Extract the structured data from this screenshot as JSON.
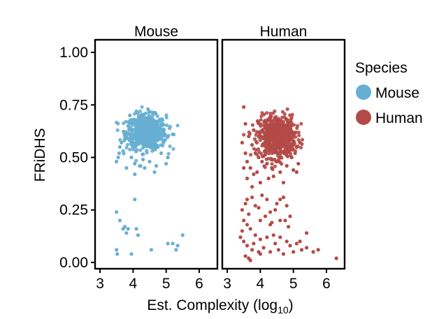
{
  "chart_data": {
    "type": "scatter",
    "facets": [
      {
        "name": "Mouse",
        "color": "#67aed3"
      },
      {
        "name": "Human",
        "color": "#b34a47"
      }
    ],
    "xlabel_main": "Est. Complexity (log",
    "xlabel_sub": "10",
    "xlabel_end": ")",
    "ylabel": "FRiDHS",
    "xlim": [
      2.85,
      6.55
    ],
    "ylim": [
      -0.03,
      1.06
    ],
    "x_ticks": [
      3,
      4,
      5,
      6
    ],
    "y_ticks": [
      0.0,
      0.25,
      0.5,
      0.75,
      1.0
    ],
    "y_tick_labels": [
      "0.00",
      "0.25",
      "0.50",
      "0.75",
      "1.00"
    ],
    "legend": {
      "title": "Species",
      "position": "right",
      "entries": [
        {
          "label": "Mouse",
          "color": "#67aed3"
        },
        {
          "label": "Human",
          "color": "#b34a47"
        }
      ]
    },
    "grid": false,
    "series": [
      {
        "name": "Mouse",
        "cluster": {
          "center": [
            4.4,
            0.62
          ],
          "spread": [
            0.3,
            0.04
          ],
          "n": 650
        },
        "points": [
          [
            3.5,
            0.48
          ],
          [
            3.55,
            0.5
          ],
          [
            3.6,
            0.55
          ],
          [
            3.75,
            0.6
          ],
          [
            3.85,
            0.65
          ],
          [
            3.7,
            0.53
          ],
          [
            3.95,
            0.5
          ],
          [
            4.05,
            0.47
          ],
          [
            4.2,
            0.46
          ],
          [
            4.35,
            0.45
          ],
          [
            4.5,
            0.48
          ],
          [
            4.7,
            0.46
          ],
          [
            4.85,
            0.52
          ],
          [
            4.95,
            0.58
          ],
          [
            5.05,
            0.5
          ],
          [
            4.05,
            0.42
          ],
          [
            4.65,
            0.43
          ],
          [
            5.0,
            0.47
          ],
          [
            3.9,
            0.7
          ],
          [
            4.6,
            0.71
          ],
          [
            4.1,
            0.72
          ],
          [
            4.45,
            0.73
          ],
          [
            4.8,
            0.68
          ],
          [
            5.2,
            0.61
          ],
          [
            3.65,
            0.57
          ],
          [
            3.8,
            0.45
          ],
          [
            4.3,
            0.49
          ],
          [
            4.75,
            0.55
          ],
          [
            3.58,
            0.52
          ],
          [
            4.9,
            0.63
          ],
          [
            3.5,
            0.24
          ],
          [
            4.05,
            0.3
          ],
          [
            3.6,
            0.2
          ],
          [
            3.75,
            0.17
          ],
          [
            3.8,
            0.14
          ],
          [
            3.7,
            0.16
          ],
          [
            3.85,
            0.16
          ],
          [
            4.1,
            0.16
          ],
          [
            4.15,
            0.13
          ],
          [
            3.5,
            0.06
          ],
          [
            3.52,
            0.04
          ],
          [
            3.95,
            0.04
          ],
          [
            4.55,
            0.06
          ],
          [
            5.05,
            0.09
          ],
          [
            5.2,
            0.09
          ],
          [
            5.35,
            0.08
          ],
          [
            5.5,
            0.13
          ],
          [
            5.3,
            0.06
          ]
        ]
      },
      {
        "name": "Human",
        "cluster": {
          "center": [
            4.5,
            0.6
          ],
          "spread": [
            0.28,
            0.05
          ],
          "n": 600
        },
        "points": [
          [
            3.5,
            0.74
          ],
          [
            3.55,
            0.66
          ],
          [
            3.65,
            0.6
          ],
          [
            3.75,
            0.56
          ],
          [
            3.8,
            0.63
          ],
          [
            3.85,
            0.52
          ],
          [
            3.95,
            0.5
          ],
          [
            4.05,
            0.48
          ],
          [
            4.2,
            0.47
          ],
          [
            4.35,
            0.45
          ],
          [
            4.5,
            0.48
          ],
          [
            4.6,
            0.43
          ],
          [
            4.8,
            0.46
          ],
          [
            4.95,
            0.5
          ],
          [
            5.05,
            0.52
          ],
          [
            5.15,
            0.47
          ],
          [
            5.2,
            0.57
          ],
          [
            3.55,
            0.52
          ],
          [
            3.6,
            0.48
          ],
          [
            3.45,
            0.57
          ],
          [
            3.5,
            0.45
          ],
          [
            3.6,
            0.4
          ],
          [
            3.75,
            0.36
          ],
          [
            3.8,
            0.42
          ],
          [
            4.0,
            0.38
          ],
          [
            4.4,
            0.41
          ],
          [
            4.7,
            0.38
          ],
          [
            5.0,
            0.44
          ],
          [
            5.1,
            0.43
          ],
          [
            3.7,
            0.45
          ],
          [
            3.9,
            0.43
          ],
          [
            4.25,
            0.4
          ],
          [
            3.45,
            0.25
          ],
          [
            3.55,
            0.28
          ],
          [
            3.6,
            0.3
          ],
          [
            3.75,
            0.31
          ],
          [
            3.85,
            0.27
          ],
          [
            3.95,
            0.26
          ],
          [
            4.05,
            0.32
          ],
          [
            4.2,
            0.3
          ],
          [
            4.3,
            0.24
          ],
          [
            4.45,
            0.25
          ],
          [
            4.5,
            0.28
          ],
          [
            4.6,
            0.3
          ],
          [
            4.7,
            0.31
          ],
          [
            4.8,
            0.27
          ],
          [
            4.9,
            0.22
          ],
          [
            3.65,
            0.23
          ],
          [
            3.5,
            0.2
          ],
          [
            3.7,
            0.16
          ],
          [
            4.0,
            0.2
          ],
          [
            4.15,
            0.22
          ],
          [
            4.3,
            0.18
          ],
          [
            4.6,
            0.2
          ],
          [
            4.75,
            0.2
          ],
          [
            4.85,
            0.17
          ],
          [
            3.85,
            0.13
          ],
          [
            4.0,
            0.11
          ],
          [
            4.2,
            0.12
          ],
          [
            4.4,
            0.13
          ],
          [
            4.6,
            0.12
          ],
          [
            4.8,
            0.1
          ],
          [
            3.5,
            0.1
          ],
          [
            3.6,
            0.08
          ],
          [
            3.75,
            0.06
          ],
          [
            3.8,
            0.09
          ],
          [
            3.95,
            0.05
          ],
          [
            4.1,
            0.07
          ],
          [
            4.3,
            0.05
          ],
          [
            4.55,
            0.06
          ],
          [
            4.7,
            0.04
          ],
          [
            4.9,
            0.08
          ],
          [
            5.1,
            0.09
          ],
          [
            5.25,
            0.06
          ],
          [
            5.4,
            0.07
          ],
          [
            5.6,
            0.05
          ],
          [
            5.75,
            0.06
          ],
          [
            6.3,
            0.02
          ],
          [
            3.65,
            0.02
          ],
          [
            3.7,
            0.01
          ],
          [
            3.55,
            0.03
          ],
          [
            4.0,
            0.04
          ],
          [
            4.45,
            0.09
          ],
          [
            5.0,
            0.05
          ],
          [
            3.4,
            0.12
          ],
          [
            3.45,
            0.15
          ],
          [
            3.6,
            0.18
          ],
          [
            4.35,
            0.19
          ],
          [
            5.2,
            0.1
          ],
          [
            5.4,
            0.14
          ]
        ]
      }
    ]
  }
}
